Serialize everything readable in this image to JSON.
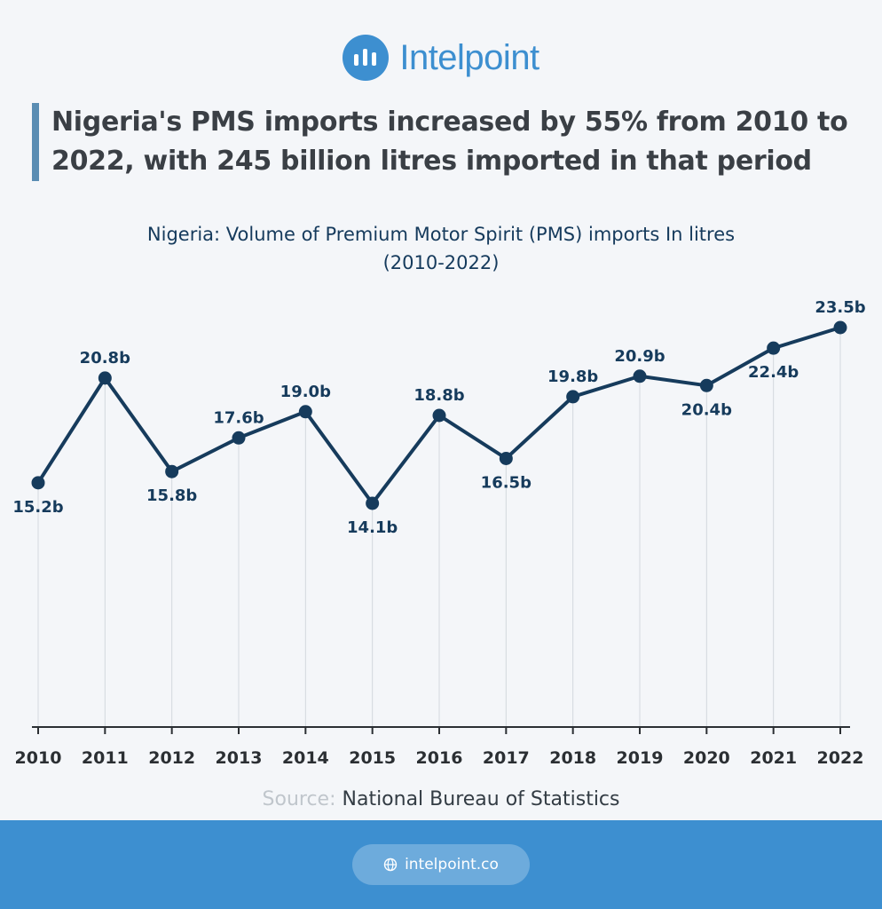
{
  "brand": {
    "name": "Intelpoint",
    "logo_icon": "bar-chart-icon",
    "color": "#3d8fd0"
  },
  "headline": "Nigeria's PMS imports increased by 55% from 2010 to 2022, with 245 billion litres imported in that period",
  "source": {
    "label": "Source:",
    "text": "National Bureau of Statistics"
  },
  "footer": {
    "url": "intelpoint.co",
    "icon": "globe-icon"
  },
  "chart_data": {
    "type": "line",
    "title": "Nigeria: Volume of Premium Motor Spirit (PMS) imports In litres",
    "subtitle": "(2010-2022)",
    "xlabel": "",
    "ylabel": "",
    "grid": false,
    "line_color": "#163b5c",
    "x": [
      "2010",
      "2011",
      "2012",
      "2013",
      "2014",
      "2015",
      "2016",
      "2017",
      "2018",
      "2019",
      "2020",
      "2021",
      "2022"
    ],
    "values": [
      15.2,
      20.8,
      15.8,
      17.6,
      19.0,
      14.1,
      18.8,
      16.5,
      19.8,
      20.9,
      20.4,
      22.4,
      23.5
    ],
    "labels": [
      "15.2b",
      "20.8b",
      "15.8b",
      "17.6b",
      "19.0b",
      "14.1b",
      "18.8b",
      "16.5b",
      "19.8b",
      "20.9b",
      "20.4b",
      "22.4b",
      "23.5b"
    ]
  }
}
